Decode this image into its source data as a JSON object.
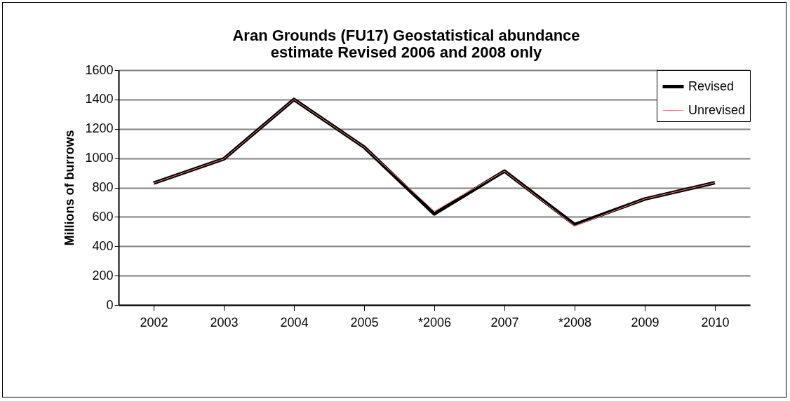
{
  "chart_data": {
    "type": "line",
    "title": [
      "Aran Grounds (FU17) Geostatistical abundance",
      "estimate Revised 2006 and 2008 only"
    ],
    "ylabel": "Millions of burrows",
    "categories": [
      "2002",
      "2003",
      "2004",
      "2005",
      "*2006",
      "2007",
      "*2008",
      "2009",
      "2010"
    ],
    "series": [
      {
        "name": "Revised",
        "color": "#000000",
        "values": [
          830,
          995,
          1400,
          1075,
          620,
          912,
          548,
          722,
          833
        ]
      },
      {
        "name": "Unrevised",
        "color": "#ff7f7f",
        "values": [
          830,
          995,
          1400,
          1075,
          640,
          912,
          538,
          722,
          833
        ]
      }
    ],
    "ylim": [
      0,
      1600
    ],
    "yticks": [
      0,
      200,
      400,
      600,
      800,
      1000,
      1200,
      1400,
      1600
    ],
    "grid": "y",
    "legend": "top right"
  }
}
